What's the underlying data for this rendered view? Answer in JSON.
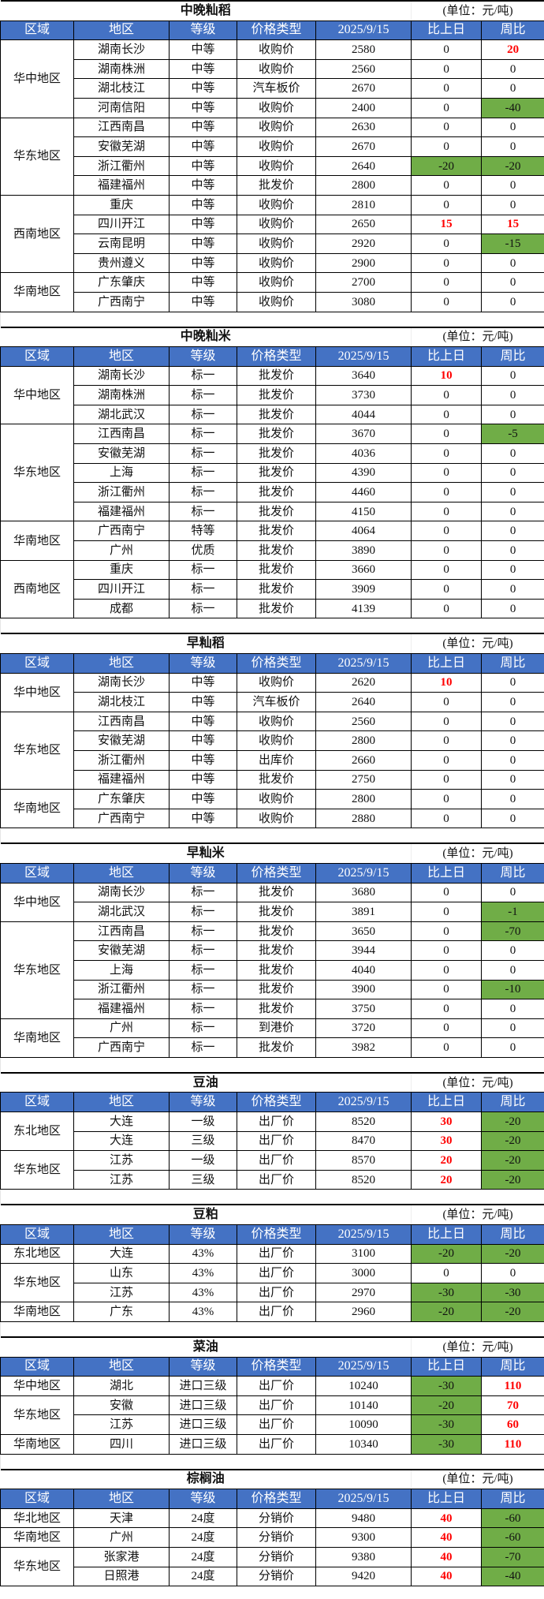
{
  "columns": [
    "区域",
    "地区",
    "等级",
    "价格类型",
    "2025/9/15",
    "比上日",
    "周比"
  ],
  "colors": {
    "header": "#4472c4",
    "increase_text": "#ff0000",
    "decrease_fill": "#70ad47"
  },
  "tables": [
    {
      "title": "中晚籼稻",
      "unit": "(单位：元/吨)",
      "groups": [
        {
          "region": "华中地区",
          "rows": [
            [
              "湖南长沙",
              "中等",
              "收购价",
              "2580",
              "0",
              "20"
            ],
            [
              "湖南株洲",
              "中等",
              "收购价",
              "2560",
              "0",
              "0"
            ],
            [
              "湖北枝江",
              "中等",
              "汽车板价",
              "2670",
              "0",
              "0"
            ],
            [
              "河南信阳",
              "中等",
              "收购价",
              "2400",
              "0",
              "-40"
            ]
          ]
        },
        {
          "region": "华东地区",
          "rows": [
            [
              "江西南昌",
              "中等",
              "收购价",
              "2630",
              "0",
              "0"
            ],
            [
              "安徽芜湖",
              "中等",
              "收购价",
              "2670",
              "0",
              "0"
            ],
            [
              "浙江衢州",
              "中等",
              "收购价",
              "2640",
              "-20",
              "-20"
            ],
            [
              "福建福州",
              "中等",
              "批发价",
              "2800",
              "0",
              "0"
            ]
          ]
        },
        {
          "region": "西南地区",
          "rows": [
            [
              "重庆",
              "中等",
              "收购价",
              "2810",
              "0",
              "0"
            ],
            [
              "四川开江",
              "中等",
              "收购价",
              "2650",
              "15",
              "15"
            ],
            [
              "云南昆明",
              "中等",
              "收购价",
              "2920",
              "0",
              "-15"
            ],
            [
              "贵州遵义",
              "中等",
              "收购价",
              "2900",
              "0",
              "0"
            ]
          ]
        },
        {
          "region": "华南地区",
          "rows": [
            [
              "广东肇庆",
              "中等",
              "收购价",
              "2700",
              "0",
              "0"
            ],
            [
              "广西南宁",
              "中等",
              "收购价",
              "3080",
              "0",
              "0"
            ]
          ]
        }
      ]
    },
    {
      "title": "中晚籼米",
      "unit": "(单位：元/吨)",
      "groups": [
        {
          "region": "华中地区",
          "rows": [
            [
              "湖南长沙",
              "标一",
              "批发价",
              "3640",
              "10",
              "0"
            ],
            [
              "湖南株洲",
              "标一",
              "批发价",
              "3730",
              "0",
              "0"
            ],
            [
              "湖北武汉",
              "标一",
              "批发价",
              "4044",
              "0",
              "0"
            ]
          ]
        },
        {
          "region": "华东地区",
          "rows": [
            [
              "江西南昌",
              "标一",
              "批发价",
              "3670",
              "0",
              "-5"
            ],
            [
              "安徽芜湖",
              "标一",
              "批发价",
              "4036",
              "0",
              "0"
            ],
            [
              "上海",
              "标一",
              "批发价",
              "4390",
              "0",
              "0"
            ],
            [
              "浙江衢州",
              "标一",
              "批发价",
              "4460",
              "0",
              "0"
            ],
            [
              "福建福州",
              "标一",
              "批发价",
              "4150",
              "0",
              "0"
            ]
          ]
        },
        {
          "region": "华南地区",
          "rows": [
            [
              "广西南宁",
              "特等",
              "批发价",
              "4064",
              "0",
              "0"
            ],
            [
              "广州",
              "优质",
              "批发价",
              "3890",
              "0",
              "0"
            ]
          ]
        },
        {
          "region": "西南地区",
          "rows": [
            [
              "重庆",
              "标一",
              "批发价",
              "3660",
              "0",
              "0"
            ],
            [
              "四川开江",
              "标一",
              "批发价",
              "3909",
              "0",
              "0"
            ],
            [
              "成都",
              "标一",
              "批发价",
              "4139",
              "0",
              "0"
            ]
          ]
        }
      ]
    },
    {
      "title": "早籼稻",
      "unit": "(单位：元/吨)",
      "groups": [
        {
          "region": "华中地区",
          "rows": [
            [
              "湖南长沙",
              "中等",
              "收购价",
              "2620",
              "10",
              "0"
            ],
            [
              "湖北枝江",
              "中等",
              "汽车板价",
              "2640",
              "0",
              "0"
            ]
          ]
        },
        {
          "region": "华东地区",
          "rows": [
            [
              "江西南昌",
              "中等",
              "收购价",
              "2560",
              "0",
              "0"
            ],
            [
              "安徽芜湖",
              "中等",
              "收购价",
              "2800",
              "0",
              "0"
            ],
            [
              "浙江衢州",
              "中等",
              "出库价",
              "2660",
              "0",
              "0"
            ],
            [
              "福建福州",
              "中等",
              "批发价",
              "2750",
              "0",
              "0"
            ]
          ]
        },
        {
          "region": "华南地区",
          "rows": [
            [
              "广东肇庆",
              "中等",
              "收购价",
              "2800",
              "0",
              "0"
            ],
            [
              "广西南宁",
              "中等",
              "收购价",
              "2880",
              "0",
              "0"
            ]
          ]
        }
      ]
    },
    {
      "title": "早籼米",
      "unit": "(单位：元/吨)",
      "groups": [
        {
          "region": "华中地区",
          "rows": [
            [
              "湖南长沙",
              "标一",
              "批发价",
              "3680",
              "0",
              "0"
            ],
            [
              "湖北武汉",
              "标一",
              "批发价",
              "3891",
              "0",
              "-1"
            ]
          ]
        },
        {
          "region": "华东地区",
          "rows": [
            [
              "江西南昌",
              "标一",
              "批发价",
              "3650",
              "0",
              "-70"
            ],
            [
              "安徽芜湖",
              "标一",
              "批发价",
              "3944",
              "0",
              "0"
            ],
            [
              "上海",
              "标一",
              "批发价",
              "4040",
              "0",
              "0"
            ],
            [
              "浙江衢州",
              "标一",
              "批发价",
              "3900",
              "0",
              "-10"
            ],
            [
              "福建福州",
              "标一",
              "批发价",
              "3750",
              "0",
              "0"
            ]
          ]
        },
        {
          "region": "华南地区",
          "rows": [
            [
              "广州",
              "标一",
              "到港价",
              "3720",
              "0",
              "0"
            ],
            [
              "广西南宁",
              "标一",
              "批发价",
              "3982",
              "0",
              "0"
            ]
          ]
        }
      ]
    },
    {
      "title": "豆油",
      "unit": "(单位：元/吨)",
      "groups": [
        {
          "region": "东北地区",
          "rows": [
            [
              "大连",
              "一级",
              "出厂价",
              "8520",
              "30",
              "-20"
            ],
            [
              "大连",
              "三级",
              "出厂价",
              "8470",
              "30",
              "-20"
            ]
          ]
        },
        {
          "region": "华东地区",
          "rows": [
            [
              "江苏",
              "一级",
              "出厂价",
              "8570",
              "20",
              "-20"
            ],
            [
              "江苏",
              "三级",
              "出厂价",
              "8520",
              "20",
              "-20"
            ]
          ]
        }
      ]
    },
    {
      "title": "豆粕",
      "unit": "(单位：元/吨)",
      "groups": [
        {
          "region": "东北地区",
          "rows": [
            [
              "大连",
              "43%",
              "出厂价",
              "3100",
              "-20",
              "-20"
            ]
          ]
        },
        {
          "region": "华东地区",
          "rows": [
            [
              "山东",
              "43%",
              "出厂价",
              "3000",
              "0",
              "0"
            ],
            [
              "江苏",
              "43%",
              "出厂价",
              "2970",
              "-30",
              "-30"
            ]
          ]
        },
        {
          "region": "华南地区",
          "rows": [
            [
              "广东",
              "43%",
              "出厂价",
              "2960",
              "-20",
              "-20"
            ]
          ]
        }
      ]
    },
    {
      "title": "菜油",
      "unit": "(单位：元/吨)",
      "groups": [
        {
          "region": "华中地区",
          "rows": [
            [
              "湖北",
              "进口三级",
              "出厂价",
              "10240",
              "-30",
              "110"
            ]
          ]
        },
        {
          "region": "华东地区",
          "rows": [
            [
              "安徽",
              "进口三级",
              "出厂价",
              "10140",
              "-20",
              "70"
            ],
            [
              "江苏",
              "进口三级",
              "出厂价",
              "10090",
              "-30",
              "60"
            ]
          ]
        },
        {
          "region": "华南地区",
          "rows": [
            [
              "四川",
              "进口三级",
              "出厂价",
              "10340",
              "-30",
              "110"
            ]
          ]
        }
      ]
    },
    {
      "title": "棕榈油",
      "unit": "(单位：元/吨)",
      "groups": [
        {
          "region": "华北地区",
          "rows": [
            [
              "天津",
              "24度",
              "分销价",
              "9480",
              "40",
              "-60"
            ]
          ]
        },
        {
          "region": "华南地区",
          "rows": [
            [
              "广州",
              "24度",
              "分销价",
              "9300",
              "40",
              "-60"
            ]
          ]
        },
        {
          "region": "华东地区",
          "rows": [
            [
              "张家港",
              "24度",
              "分销价",
              "9380",
              "40",
              "-70"
            ],
            [
              "日照港",
              "24度",
              "分销价",
              "9420",
              "40",
              "-40"
            ]
          ]
        }
      ]
    }
  ]
}
